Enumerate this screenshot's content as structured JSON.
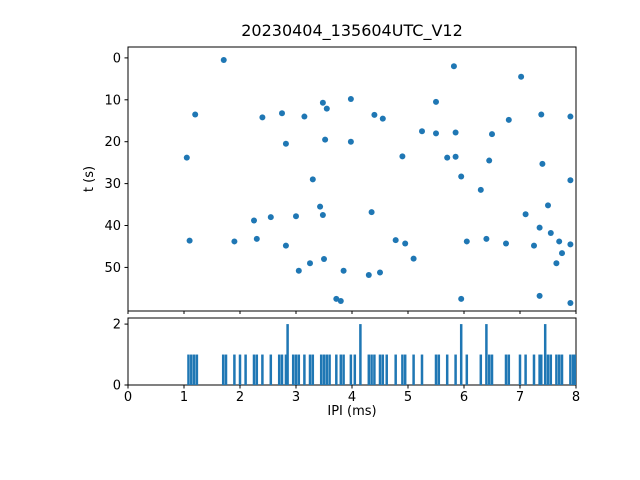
{
  "title": "20230404_135604UTC_V12",
  "colors": {
    "accent": "#1f77b4",
    "axis": "#000000",
    "background": "#ffffff"
  },
  "chart_data": [
    {
      "type": "scatter",
      "title": "20230404_135604UTC_V12",
      "xlabel": "",
      "ylabel": "t (s)",
      "xlim": [
        0,
        8
      ],
      "ylim": [
        -2.6,
        60.4
      ],
      "y_inverted": true,
      "xticks": [
        0,
        1,
        2,
        3,
        4,
        5,
        6,
        7,
        8
      ],
      "yticks": [
        0,
        10,
        20,
        30,
        40,
        50
      ],
      "grid": false,
      "legend": "none",
      "points": [
        [
          1.71,
          0.5
        ],
        [
          5.82,
          2.0
        ],
        [
          7.02,
          4.5
        ],
        [
          3.98,
          9.8
        ],
        [
          3.48,
          10.7
        ],
        [
          3.55,
          12.1
        ],
        [
          5.5,
          10.5
        ],
        [
          1.2,
          13.5
        ],
        [
          2.4,
          14.2
        ],
        [
          2.75,
          13.2
        ],
        [
          3.15,
          14.0
        ],
        [
          4.4,
          13.6
        ],
        [
          4.55,
          14.5
        ],
        [
          6.8,
          14.8
        ],
        [
          7.38,
          13.5
        ],
        [
          7.9,
          14.0
        ],
        [
          3.52,
          19.5
        ],
        [
          5.25,
          17.5
        ],
        [
          5.5,
          18.0
        ],
        [
          5.85,
          17.8
        ],
        [
          6.5,
          18.2
        ],
        [
          2.82,
          20.5
        ],
        [
          3.98,
          20.0
        ],
        [
          1.05,
          23.8
        ],
        [
          4.9,
          23.5
        ],
        [
          5.7,
          23.8
        ],
        [
          5.85,
          23.6
        ],
        [
          6.45,
          24.5
        ],
        [
          7.4,
          25.3
        ],
        [
          3.3,
          29.0
        ],
        [
          5.95,
          28.3
        ],
        [
          7.9,
          29.2
        ],
        [
          6.3,
          31.5
        ],
        [
          3.43,
          35.5
        ],
        [
          7.5,
          35.2
        ],
        [
          2.25,
          38.8
        ],
        [
          2.55,
          38.0
        ],
        [
          3.0,
          37.8
        ],
        [
          3.48,
          37.5
        ],
        [
          4.35,
          36.8
        ],
        [
          7.1,
          37.3
        ],
        [
          7.35,
          40.5
        ],
        [
          7.55,
          41.8
        ],
        [
          1.1,
          43.6
        ],
        [
          1.9,
          43.8
        ],
        [
          2.3,
          43.2
        ],
        [
          2.82,
          44.8
        ],
        [
          4.78,
          43.5
        ],
        [
          4.95,
          44.3
        ],
        [
          6.05,
          43.8
        ],
        [
          6.4,
          43.2
        ],
        [
          6.75,
          44.3
        ],
        [
          7.25,
          44.8
        ],
        [
          7.7,
          43.8
        ],
        [
          7.9,
          44.5
        ],
        [
          5.1,
          47.9
        ],
        [
          7.75,
          46.6
        ],
        [
          3.05,
          50.8
        ],
        [
          3.25,
          49.0
        ],
        [
          3.5,
          48.0
        ],
        [
          3.85,
          50.8
        ],
        [
          4.3,
          51.8
        ],
        [
          4.5,
          51.2
        ],
        [
          7.65,
          49.0
        ],
        [
          3.72,
          57.5
        ],
        [
          3.8,
          58.0
        ],
        [
          5.95,
          57.5
        ],
        [
          7.35,
          56.8
        ],
        [
          7.9,
          58.5
        ]
      ]
    },
    {
      "type": "bar",
      "title": "",
      "xlabel": "IPI (ms)",
      "ylabel": "",
      "xlim": [
        0,
        8
      ],
      "ylim": [
        0,
        2.2
      ],
      "xticks": [
        0,
        1,
        2,
        3,
        4,
        5,
        6,
        7,
        8
      ],
      "yticks": [
        0,
        2
      ],
      "grid": false,
      "legend": "none",
      "bars": [
        [
          1.08,
          1
        ],
        [
          1.13,
          1
        ],
        [
          1.18,
          1
        ],
        [
          1.23,
          1
        ],
        [
          1.7,
          1
        ],
        [
          1.75,
          1
        ],
        [
          1.9,
          1
        ],
        [
          2.0,
          1
        ],
        [
          2.1,
          1
        ],
        [
          2.25,
          1
        ],
        [
          2.3,
          1
        ],
        [
          2.4,
          1
        ],
        [
          2.55,
          1
        ],
        [
          2.7,
          1
        ],
        [
          2.75,
          1
        ],
        [
          2.82,
          1
        ],
        [
          2.85,
          2
        ],
        [
          2.95,
          1
        ],
        [
          3.0,
          1
        ],
        [
          3.05,
          1
        ],
        [
          3.15,
          1
        ],
        [
          3.25,
          1
        ],
        [
          3.3,
          1
        ],
        [
          3.45,
          1
        ],
        [
          3.5,
          1
        ],
        [
          3.55,
          1
        ],
        [
          3.6,
          1
        ],
        [
          3.72,
          1
        ],
        [
          3.8,
          1
        ],
        [
          3.85,
          1
        ],
        [
          3.98,
          1
        ],
        [
          4.05,
          1
        ],
        [
          4.15,
          2
        ],
        [
          4.3,
          1
        ],
        [
          4.35,
          1
        ],
        [
          4.4,
          1
        ],
        [
          4.5,
          1
        ],
        [
          4.55,
          1
        ],
        [
          4.62,
          1
        ],
        [
          4.78,
          1
        ],
        [
          4.9,
          1
        ],
        [
          4.95,
          1
        ],
        [
          5.1,
          1
        ],
        [
          5.25,
          1
        ],
        [
          5.5,
          1
        ],
        [
          5.55,
          1
        ],
        [
          5.7,
          1
        ],
        [
          5.85,
          1
        ],
        [
          5.95,
          2
        ],
        [
          6.05,
          1
        ],
        [
          6.3,
          1
        ],
        [
          6.4,
          2
        ],
        [
          6.45,
          1
        ],
        [
          6.5,
          1
        ],
        [
          6.75,
          1
        ],
        [
          6.8,
          1
        ],
        [
          7.0,
          1
        ],
        [
          7.1,
          1
        ],
        [
          7.25,
          1
        ],
        [
          7.35,
          1
        ],
        [
          7.38,
          1
        ],
        [
          7.45,
          2
        ],
        [
          7.5,
          1
        ],
        [
          7.55,
          1
        ],
        [
          7.65,
          1
        ],
        [
          7.7,
          1
        ],
        [
          7.75,
          1
        ],
        [
          7.9,
          1
        ],
        [
          7.95,
          1
        ],
        [
          8.0,
          1
        ]
      ]
    }
  ]
}
